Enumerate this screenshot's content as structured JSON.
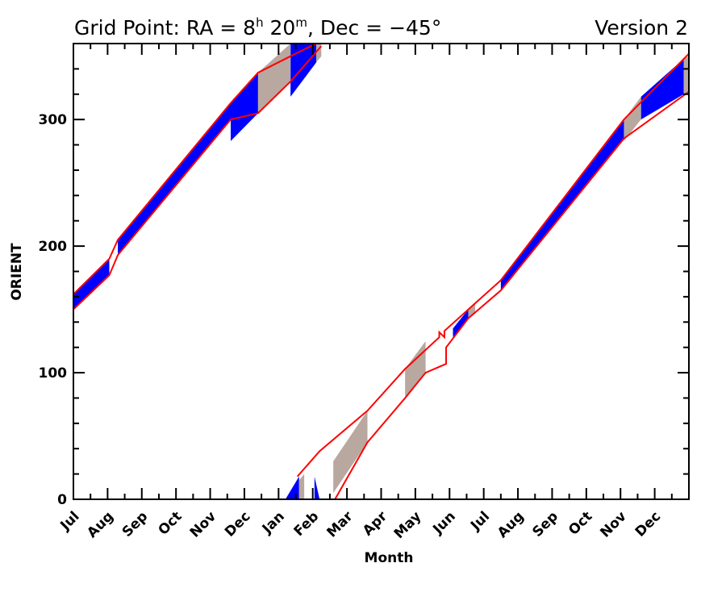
{
  "chart_data": {
    "type": "area",
    "title": "Grid Point: RA = 8h 20m, Dec = −45°",
    "title_parts": {
      "prefix": "Grid Point: RA = 8",
      "h_sup": "h",
      "mid": " 20",
      "m_sup": "m",
      "suffix": ", Dec = −45°"
    },
    "version_label": "Version 2",
    "xlabel": "Month",
    "ylabel": "ORIENT",
    "xlim": [
      0,
      18
    ],
    "ylim": [
      0,
      360
    ],
    "x_tick_labels": [
      "Jul",
      "Aug",
      "Sep",
      "Oct",
      "Nov",
      "Dec",
      "Jan",
      "Feb",
      "Mar",
      "Apr",
      "May",
      "Jun",
      "Jul",
      "Aug",
      "Sep",
      "Oct",
      "Nov",
      "Dec"
    ],
    "y_ticks": [
      0,
      100,
      200,
      300
    ],
    "y_minor_step": 20,
    "grid": false,
    "colors": {
      "allowed": "#0000ff",
      "restricted": "#b8a8a0",
      "envelope": "#ff0000"
    },
    "legend": "none",
    "series": [
      {
        "name": "allowed",
        "segments": [
          [
            [
              0,
              150
            ],
            [
              1.05,
              177
            ],
            [
              1.05,
              190
            ],
            [
              0,
              162
            ]
          ],
          [
            [
              1.3,
              193
            ],
            [
              4.6,
              300
            ],
            [
              4.6,
              313
            ],
            [
              1.3,
              205
            ]
          ],
          [
            [
              4.6,
              283
            ],
            [
              5.4,
              305
            ],
            [
              5.4,
              337
            ],
            [
              4.6,
              313
            ]
          ],
          [
            [
              6.35,
              318
            ],
            [
              7.1,
              345
            ],
            [
              7.1,
              360
            ],
            [
              6.35,
              360
            ]
          ],
          [
            [
              6.2,
              0
            ],
            [
              6.6,
              0
            ],
            [
              6.6,
              18
            ],
            [
              6.2,
              0
            ]
          ],
          [
            [
              7.05,
              0
            ],
            [
              7.2,
              0
            ],
            [
              7.05,
              18
            ]
          ],
          [
            [
              8.4,
              45
            ],
            [
              8.5,
              42
            ],
            [
              8.45,
              49
            ]
          ],
          [
            [
              11.1,
              128
            ],
            [
              11.55,
              143
            ],
            [
              11.55,
              150
            ],
            [
              11.1,
              135
            ]
          ],
          [
            [
              12.5,
              165
            ],
            [
              16.1,
              285
            ],
            [
              16.1,
              300
            ],
            [
              12.5,
              173
            ]
          ],
          [
            [
              16.6,
              300
            ],
            [
              17.85,
              320
            ],
            [
              17.85,
              348
            ],
            [
              16.6,
              318
            ]
          ]
        ]
      },
      {
        "name": "restricted",
        "segments": [
          [
            [
              5.4,
              305
            ],
            [
              6.35,
              330
            ],
            [
              6.35,
              360
            ],
            [
              5.4,
              337
            ]
          ],
          [
            [
              7.1,
              345
            ],
            [
              7.25,
              350
            ],
            [
              7.25,
              360
            ],
            [
              7.1,
              360
            ]
          ],
          [
            [
              6.6,
              0
            ],
            [
              6.75,
              0
            ],
            [
              6.75,
              20
            ],
            [
              6.6,
              15
            ]
          ],
          [
            [
              7.6,
              5
            ],
            [
              8.6,
              45
            ],
            [
              8.6,
              70
            ],
            [
              7.6,
              30
            ]
          ],
          [
            [
              9.7,
              80
            ],
            [
              10.3,
              100
            ],
            [
              10.3,
              125
            ],
            [
              9.7,
              103
            ]
          ],
          [
            [
              11.55,
              143
            ],
            [
              11.75,
              148
            ],
            [
              11.75,
              155
            ],
            [
              11.55,
              150
            ]
          ],
          [
            [
              16.1,
              283
            ],
            [
              16.6,
              300
            ],
            [
              16.6,
              318
            ],
            [
              16.1,
              300
            ]
          ],
          [
            [
              17.85,
              320
            ],
            [
              18,
              322
            ],
            [
              18,
              350
            ],
            [
              17.85,
              348
            ]
          ]
        ]
      },
      {
        "name": "envelope_upper",
        "points": [
          [
            0,
            162
          ],
          [
            1.05,
            190
          ],
          [
            1.3,
            205
          ],
          [
            4.6,
            313
          ],
          [
            5.4,
            337
          ],
          [
            6.35,
            350
          ],
          [
            7.1,
            360
          ],
          [
            7.2,
            360
          ],
          [
            6.55,
            18
          ],
          [
            7.2,
            38
          ],
          [
            8.6,
            70
          ],
          [
            9.7,
            103
          ],
          [
            10.7,
            128
          ],
          [
            10.7,
            132
          ],
          [
            10.85,
            128
          ],
          [
            10.85,
            133
          ],
          [
            11.55,
            150
          ],
          [
            12.5,
            173
          ],
          [
            16.1,
            300
          ],
          [
            18,
            352
          ]
        ]
      },
      {
        "name": "envelope_lower",
        "points": [
          [
            0,
            150
          ],
          [
            1.05,
            177
          ],
          [
            1.3,
            193
          ],
          [
            4.6,
            300
          ],
          [
            5.4,
            305
          ],
          [
            6.35,
            330
          ],
          [
            7.25,
            358
          ],
          [
            7.35,
            0
          ],
          [
            7.65,
            0
          ],
          [
            8.6,
            45
          ],
          [
            9.7,
            80
          ],
          [
            10.3,
            100
          ],
          [
            10.9,
            107
          ],
          [
            10.9,
            120
          ],
          [
            11.55,
            143
          ],
          [
            12.5,
            165
          ],
          [
            16.1,
            285
          ],
          [
            18,
            322
          ]
        ]
      }
    ]
  }
}
